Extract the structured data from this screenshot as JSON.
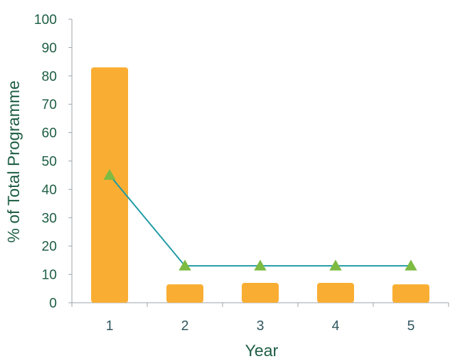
{
  "chart_data": {
    "type": "bar",
    "title": "",
    "xlabel": "Year",
    "ylabel": "% of Total Programme",
    "categories": [
      "1",
      "2",
      "3",
      "4",
      "5"
    ],
    "ylim": [
      0,
      100
    ],
    "yticks": [
      "0",
      "10",
      "20",
      "30",
      "40",
      "50",
      "60",
      "70",
      "80",
      "90",
      "100"
    ],
    "series": [
      {
        "type": "bar",
        "values": [
          83,
          6.5,
          7,
          7,
          6.5
        ],
        "color": "#f9ae33"
      },
      {
        "type": "line",
        "values": [
          45,
          13,
          13,
          13,
          13
        ],
        "color": "#1e9aa3",
        "marker": "triangle",
        "marker_color": "#7dbb43"
      }
    ],
    "grid": false,
    "legend": "none"
  }
}
